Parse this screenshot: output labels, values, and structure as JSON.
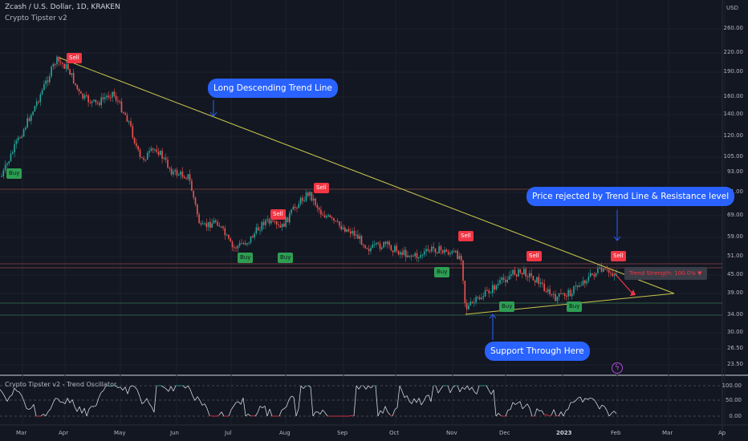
{
  "header": {
    "symbol_line": "Zcash / U.S. Dollar, 1D, KRAKEN",
    "indicator_name": "Crypto Tipster v2",
    "currency": "USD"
  },
  "price_axis": {
    "labels": [
      "260.00",
      "220.00",
      "190.00",
      "160.00",
      "140.00",
      "120.00",
      "105.00",
      "93.00",
      "81.00",
      "69.00",
      "59.00",
      "51.00",
      "45.00",
      "39.00",
      "34.00",
      "30.00",
      "26.50",
      "23.50"
    ]
  },
  "time_axis": {
    "labels": [
      "Mar",
      "Apr",
      "May",
      "Jun",
      "Jul",
      "Aug",
      "Sep",
      "Oct",
      "Nov",
      "Dec",
      "2023",
      "Feb",
      "Mar",
      "Ap"
    ]
  },
  "callouts": {
    "trend_line": "Long Descending Trend Line",
    "rejected": "Price rejected by Trend Line & Resistance level",
    "support": "Support Through Here"
  },
  "signals": {
    "sell": "Sell",
    "buy": "Buy"
  },
  "trend_strength": "Trend Strength: 100.0% ▼",
  "oscillator": {
    "title": "Crypto Tipster v2 - Trend Oscillator",
    "labels": [
      "100.00",
      "50.00",
      "0.00"
    ]
  },
  "colors": {
    "up": "#26a69a",
    "down": "#ef5350",
    "trend_line": "#c8c84a",
    "callout": "#2962ff",
    "sell": "#f23645",
    "buy": "#2e9e53"
  },
  "chart_data": {
    "type": "candlestick",
    "title": "Zcash / U.S. Dollar, 1D, KRAKEN",
    "x_range": [
      "Mar",
      "Apr"
    ],
    "y_ticks": [
      260,
      220,
      190,
      160,
      140,
      120,
      105,
      93,
      81,
      69,
      59,
      51,
      45,
      39,
      34,
      30,
      26.5,
      23.5
    ],
    "log_scale": true,
    "approx_path": [
      {
        "x": "Mar",
        "y": 95
      },
      {
        "x": "Apr",
        "y": 210
      },
      {
        "x": "May",
        "y": 140
      },
      {
        "x": "Jun",
        "y": 57
      },
      {
        "x": "Jul",
        "y": 55
      },
      {
        "x": "Aug",
        "y": 78
      },
      {
        "x": "Sep",
        "y": 60
      },
      {
        "x": "Oct",
        "y": 53
      },
      {
        "x": "Nov",
        "y": 50
      },
      {
        "x": "Nov",
        "y": 34
      },
      {
        "x": "Dec",
        "y": 46
      },
      {
        "x": "2023",
        "y": 39
      },
      {
        "x": "Feb",
        "y": 48
      },
      {
        "x": "Feb",
        "y": 44
      }
    ]
  }
}
